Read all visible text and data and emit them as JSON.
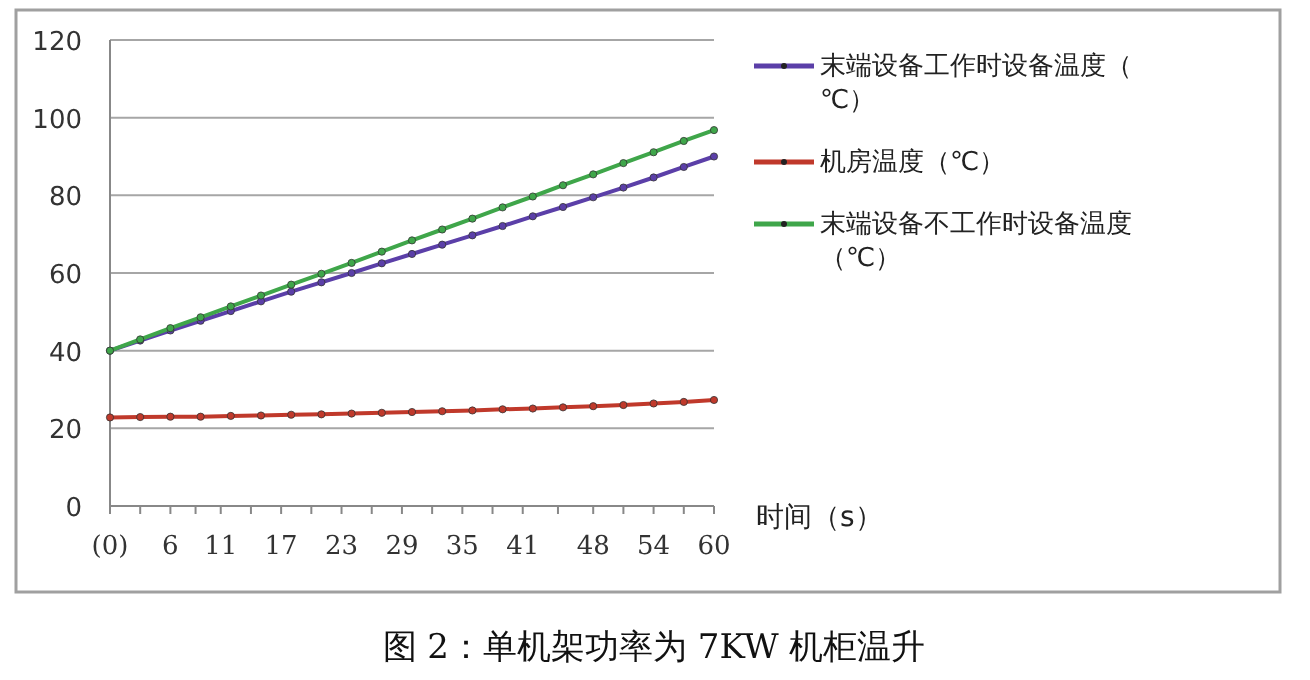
{
  "chart_data": {
    "type": "line",
    "x": [
      0,
      3,
      6,
      9,
      12,
      15,
      18,
      21,
      24,
      27,
      30,
      33,
      36,
      39,
      42,
      45,
      48,
      51,
      54,
      57,
      60
    ],
    "xlabel": "时间（s）",
    "xlim": [
      0,
      60
    ],
    "xticks": [
      {
        "value": 0,
        "label": "(0)"
      },
      {
        "value": 3,
        "label": null
      },
      6,
      {
        "value": 8.5,
        "label": null
      },
      11,
      {
        "value": 14,
        "label": null
      },
      17,
      {
        "value": 20,
        "label": null
      },
      23,
      {
        "value": 26,
        "label": null
      },
      29,
      {
        "value": 32,
        "label": null
      },
      35,
      {
        "value": 38,
        "label": null
      },
      41,
      {
        "value": 44.5,
        "label": null
      },
      48,
      {
        "value": 51,
        "label": null
      },
      54,
      {
        "value": 57,
        "label": null
      },
      60
    ],
    "ylim": [
      0,
      120
    ],
    "yticks": [
      0,
      20,
      40,
      60,
      80,
      100,
      120
    ],
    "grid": "y",
    "legend": "right",
    "marker": "circle",
    "line_style": "solid",
    "series": [
      {
        "name": "末端设备工作时设备温度（℃）",
        "color": "#5b3fa8",
        "values": [
          40,
          42.6,
          45.2,
          47.7,
          50.2,
          52.7,
          55.2,
          57.6,
          60.0,
          62.5,
          64.9,
          67.3,
          69.7,
          72.1,
          74.6,
          77.0,
          79.5,
          82.0,
          84.6,
          87.3,
          90.0
        ]
      },
      {
        "name": "机房温度（℃）",
        "color": "#c0392b",
        "values": [
          22.8,
          22.9,
          23.0,
          23.0,
          23.2,
          23.3,
          23.5,
          23.6,
          23.8,
          24.0,
          24.2,
          24.4,
          24.6,
          24.9,
          25.1,
          25.4,
          25.7,
          26.0,
          26.4,
          26.8,
          27.3
        ]
      },
      {
        "name": "末端设备不工作时设备温度（℃）",
        "color": "#3fa64a",
        "values": [
          40,
          42.9,
          45.8,
          48.6,
          51.4,
          54.2,
          57.0,
          59.8,
          62.6,
          65.5,
          68.4,
          71.2,
          74.0,
          76.9,
          79.7,
          82.6,
          85.4,
          88.3,
          91.1,
          94.0,
          96.8
        ]
      }
    ],
    "annotations": [
      "图 2：单机架功率为 7KW 机柜温升"
    ]
  }
}
